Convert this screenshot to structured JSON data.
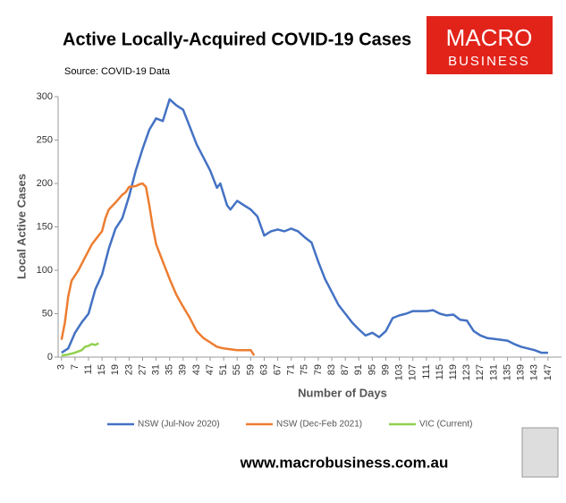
{
  "chart_data": {
    "type": "line",
    "title": "Active Locally-Acquired COVID-19 Cases",
    "subtitle": "Source: COVID-19 Data",
    "logo": [
      "MACRO",
      "BUSINESS"
    ],
    "website": "www.macrobusiness.com.au",
    "x_label": "Number of Days",
    "y_label": "Local Active Cases",
    "xlim": [
      2,
      151
    ],
    "ylim": [
      0,
      300
    ],
    "xticks": [
      3,
      7,
      11,
      15,
      19,
      23,
      27,
      31,
      35,
      39,
      43,
      47,
      51,
      55,
      59,
      63,
      67,
      71,
      75,
      79,
      83,
      87,
      91,
      95,
      99,
      103,
      107,
      111,
      115,
      119,
      123,
      127,
      131,
      135,
      139,
      143,
      147
    ],
    "yticks": [
      0,
      50,
      100,
      150,
      200,
      250,
      300
    ],
    "grid": false,
    "legend": "bottom",
    "series": [
      {
        "name": "NSW (Jul-Nov 2020)",
        "color": "#4472c4",
        "x": [
          3,
          5,
          7,
          9,
          11,
          13,
          15,
          17,
          19,
          21,
          23,
          25,
          27,
          29,
          31,
          33,
          35,
          37,
          39,
          41,
          43,
          45,
          47,
          49,
          50,
          52,
          53,
          55,
          57,
          59,
          61,
          63,
          65,
          67,
          69,
          71,
          73,
          75,
          77,
          79,
          81,
          83,
          85,
          87,
          89,
          91,
          93,
          95,
          97,
          99,
          101,
          103,
          105,
          107,
          109,
          111,
          113,
          115,
          117,
          119,
          121,
          123,
          125,
          127,
          129,
          131,
          133,
          135,
          137,
          139,
          141,
          143,
          145,
          147
        ],
        "values": [
          5,
          10,
          28,
          40,
          50,
          78,
          95,
          125,
          148,
          160,
          185,
          215,
          240,
          262,
          275,
          272,
          297,
          290,
          285,
          265,
          245,
          230,
          215,
          195,
          200,
          175,
          170,
          180,
          175,
          170,
          162,
          140,
          145,
          147,
          145,
          148,
          145,
          138,
          132,
          110,
          90,
          75,
          60,
          50,
          40,
          32,
          25,
          28,
          23,
          30,
          45,
          48,
          50,
          53,
          53,
          53,
          54,
          50,
          48,
          49,
          43,
          42,
          30,
          25,
          22,
          21,
          20,
          19,
          15,
          12,
          10,
          8,
          5,
          5
        ]
      },
      {
        "name": "NSW (Dec-Feb 2021)",
        "color": "#ed7d31",
        "x": [
          3,
          4,
          5,
          6,
          8,
          10,
          12,
          14,
          15,
          16,
          17,
          19,
          21,
          22,
          23,
          25,
          26,
          27,
          28,
          29,
          30,
          31,
          33,
          35,
          37,
          39,
          41,
          43,
          45,
          47,
          49,
          51,
          53,
          55,
          57,
          59,
          60
        ],
        "values": [
          20,
          40,
          70,
          88,
          100,
          115,
          130,
          140,
          145,
          160,
          170,
          178,
          187,
          190,
          196,
          197,
          199,
          200,
          196,
          175,
          150,
          130,
          110,
          90,
          72,
          58,
          45,
          30,
          22,
          17,
          12,
          10,
          9,
          8,
          8,
          8,
          2
        ]
      },
      {
        "name": "VIC (Current)",
        "color": "#92d050",
        "x": [
          3,
          5,
          7,
          9,
          10,
          11,
          12,
          13,
          14
        ],
        "values": [
          2,
          3,
          5,
          8,
          12,
          13,
          15,
          14,
          16
        ]
      }
    ]
  }
}
